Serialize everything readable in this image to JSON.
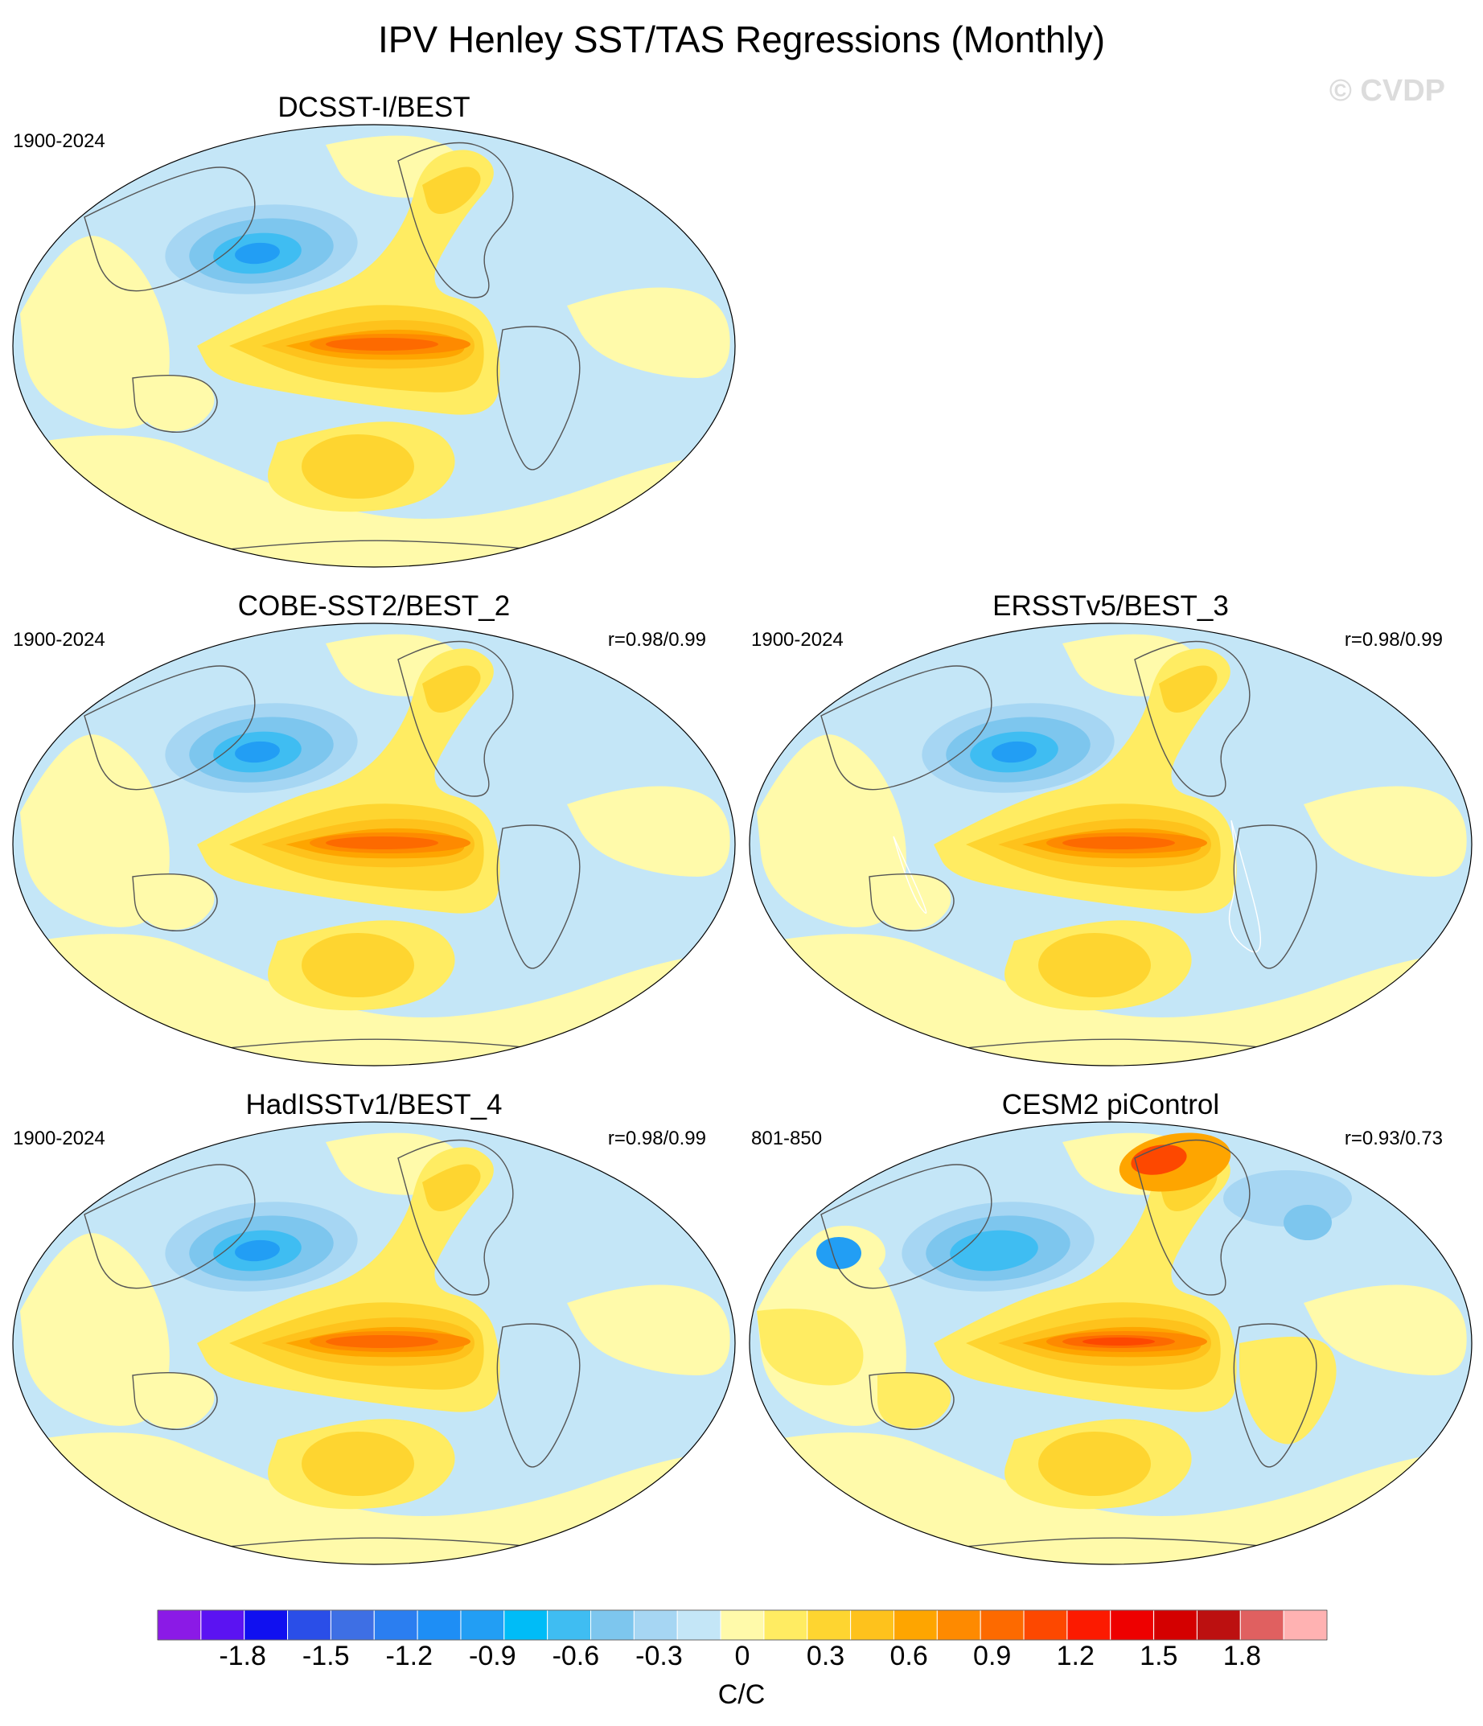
{
  "title": "IPV Henley SST/TAS Regressions (Monthly)",
  "watermark": "© CVDP",
  "panels": [
    {
      "title": "DCSST-I/BEST",
      "period": "1900-2024",
      "corr": "",
      "style": "obs"
    },
    {
      "title": "COBE-SST2/BEST_2",
      "period": "1900-2024",
      "corr": "r=0.98/0.99",
      "style": "obs"
    },
    {
      "title": "ERSSTv5/BEST_3",
      "period": "1900-2024",
      "corr": "r=0.98/0.99",
      "style": "ersst"
    },
    {
      "title": "HadISSTv1/BEST_4",
      "period": "1900-2024",
      "corr": "r=0.98/0.99",
      "style": "obs"
    },
    {
      "title": "CESM2 piControl",
      "period": "801-850",
      "corr": "r=0.93/0.73",
      "style": "model"
    }
  ],
  "colorbar": {
    "units": "C/C",
    "labels": [
      "-1.8",
      "-1.5",
      "-1.2",
      "-0.9",
      "-0.6",
      "-0.3",
      "0",
      "0.3",
      "0.6",
      "0.9",
      "1.2",
      "1.5",
      "1.8"
    ],
    "levels": [
      -2.1,
      -1.95,
      -1.8,
      -1.65,
      -1.5,
      -1.35,
      -1.2,
      -1.05,
      -0.9,
      -0.75,
      -0.6,
      -0.45,
      -0.3,
      -0.15,
      0,
      0.15,
      0.3,
      0.45,
      0.6,
      0.75,
      0.9,
      1.05,
      1.2,
      1.35,
      1.5,
      1.65,
      1.8,
      1.95,
      2.1
    ],
    "colors": [
      "#8b1ae6",
      "#5b13f2",
      "#1010f0",
      "#2a4ee8",
      "#3e6fe4",
      "#2b7ef0",
      "#1e8ef5",
      "#229ef4",
      "#00bcf7",
      "#3fbdf2",
      "#7dc6ee",
      "#a6d6f3",
      "#c4e6f7",
      "#fffaaa",
      "#ffec62",
      "#fed530",
      "#fec21c",
      "#fea500",
      "#fe8a00",
      "#fd6a00",
      "#fd4800",
      "#fc1a00",
      "#ee0000",
      "#d40000",
      "#bc1010",
      "#e06060",
      "#ffb2b2"
    ]
  }
}
